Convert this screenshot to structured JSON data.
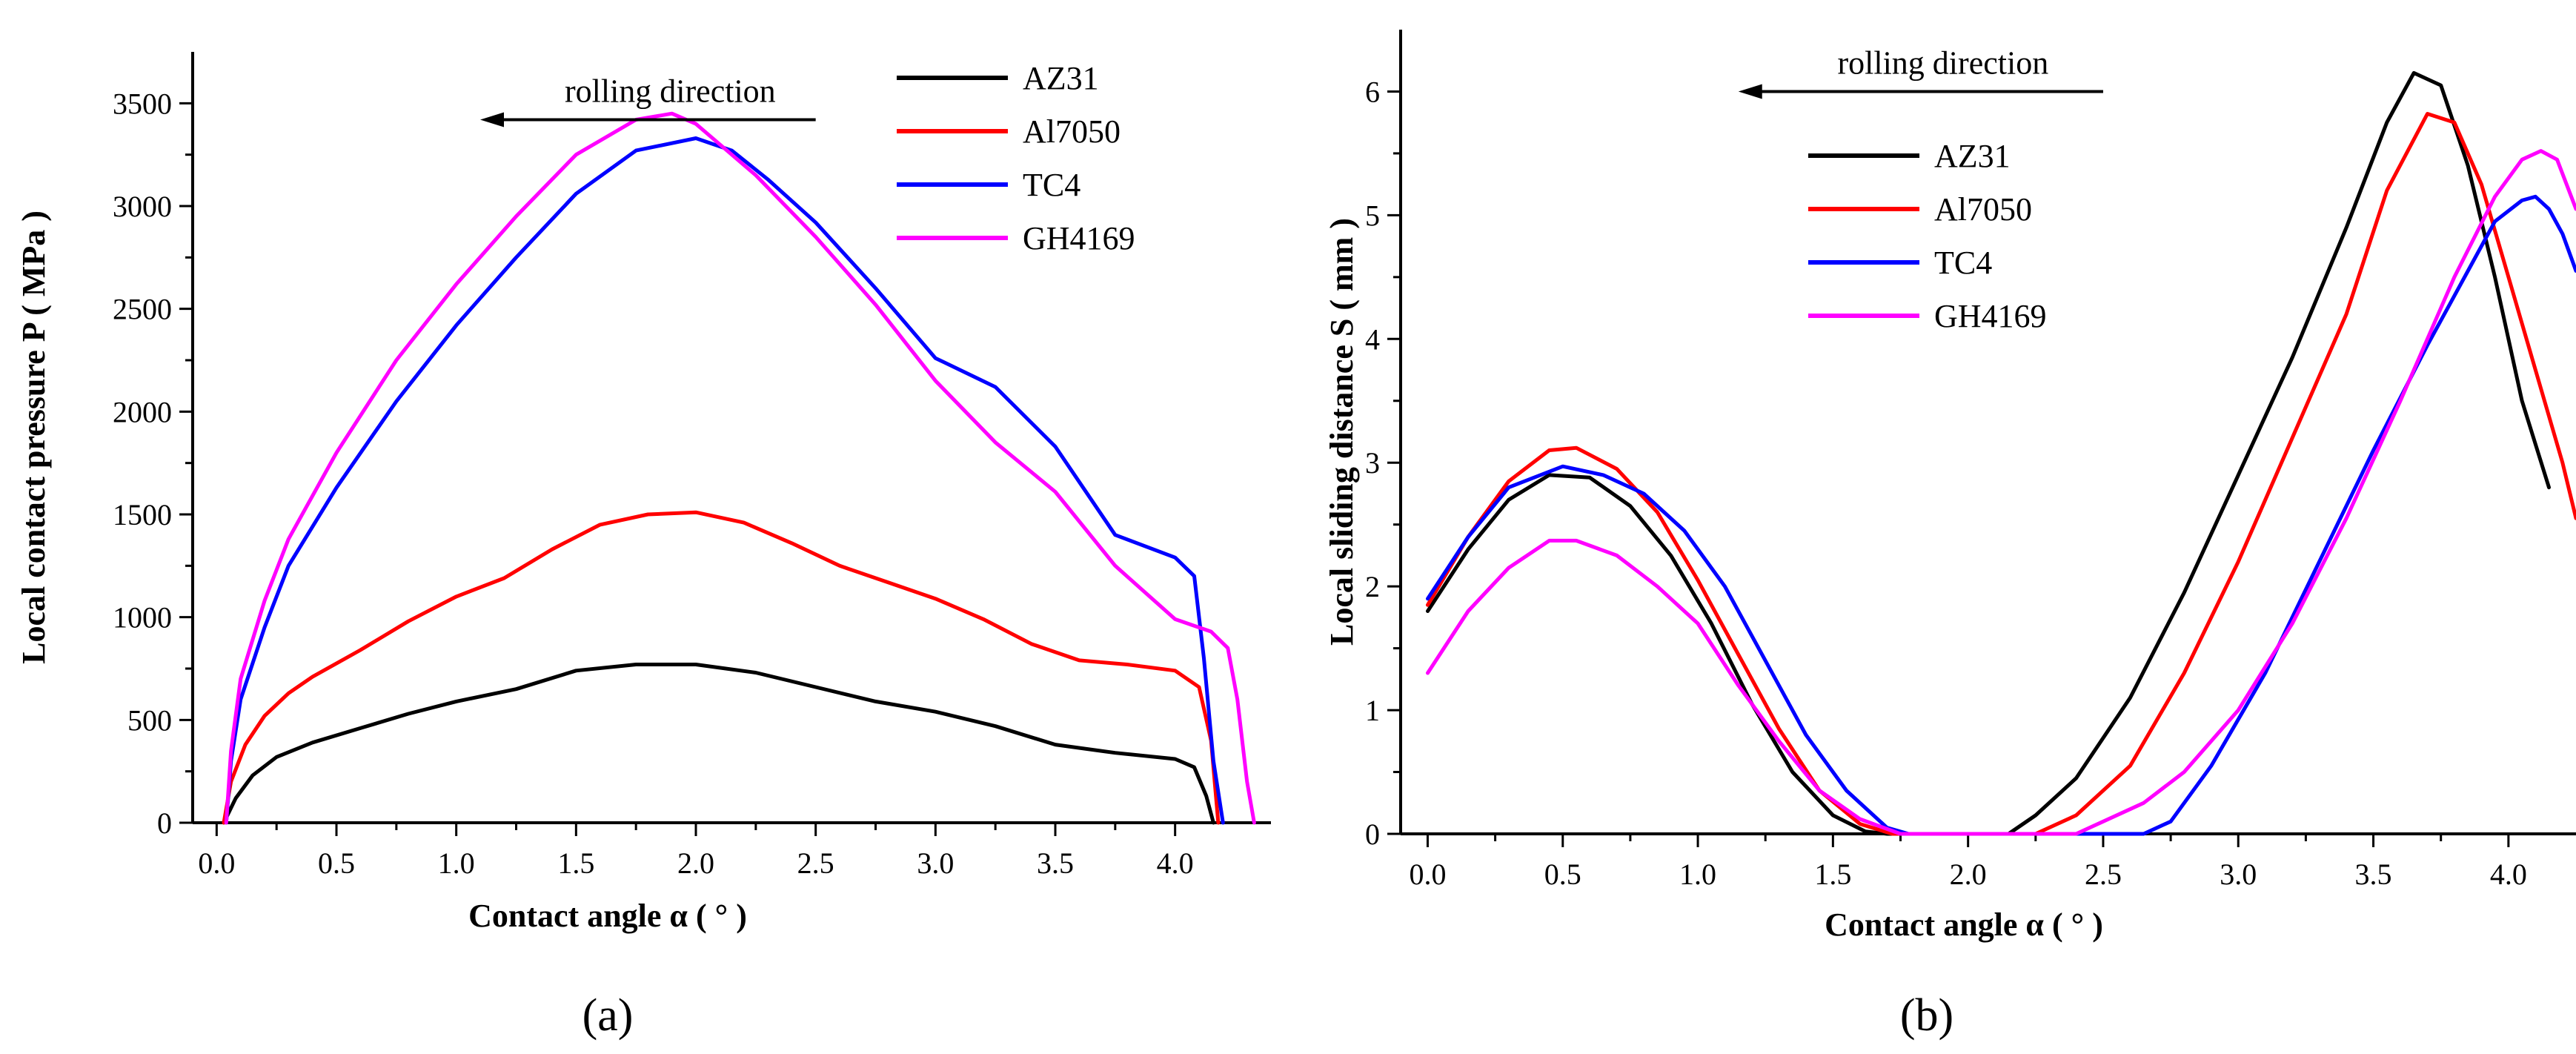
{
  "chart_data": [
    {
      "type": "line",
      "panel_label": "(a)",
      "xlabel": "Contact angle α ( ° )",
      "ylabel": "Local contact pressure P ( MPa )",
      "xlim": [
        -0.1,
        4.4
      ],
      "ylim": [
        0,
        3750
      ],
      "xticks": [
        0.0,
        0.5,
        1.0,
        1.5,
        2.0,
        2.5,
        3.0,
        3.5,
        4.0
      ],
      "xtick_labels": [
        "0.0",
        "0.5",
        "1.0",
        "1.5",
        "2.0",
        "2.5",
        "3.0",
        "3.5",
        "4.0"
      ],
      "yticks": [
        0,
        500,
        1000,
        1500,
        2000,
        2500,
        3000,
        3500
      ],
      "ytick_labels": [
        "0",
        "500",
        "1000",
        "1500",
        "2000",
        "2500",
        "3000",
        "3500"
      ],
      "legend_position": "top-right",
      "annotation": {
        "text": "rolling direction",
        "arrow_from": 2.5,
        "arrow_to": 1.1,
        "y": 3420
      },
      "series": [
        {
          "name": "AZ31",
          "color": "#000000",
          "x": [
            0.03,
            0.08,
            0.15,
            0.25,
            0.4,
            0.6,
            0.8,
            1.0,
            1.25,
            1.5,
            1.75,
            2.0,
            2.25,
            2.5,
            2.75,
            3.0,
            3.25,
            3.5,
            3.75,
            4.0,
            4.08,
            4.13,
            4.16
          ],
          "y": [
            0,
            120,
            230,
            320,
            390,
            460,
            530,
            590,
            650,
            740,
            770,
            770,
            730,
            660,
            590,
            540,
            470,
            380,
            340,
            310,
            270,
            130,
            0
          ]
        },
        {
          "name": "Al7050",
          "color": "#ff0000",
          "x": [
            0.03,
            0.06,
            0.12,
            0.2,
            0.3,
            0.4,
            0.6,
            0.8,
            1.0,
            1.2,
            1.4,
            1.6,
            1.8,
            2.0,
            2.2,
            2.4,
            2.6,
            2.8,
            3.0,
            3.2,
            3.4,
            3.6,
            3.8,
            4.0,
            4.1,
            4.15,
            4.18
          ],
          "y": [
            0,
            200,
            380,
            520,
            630,
            710,
            840,
            980,
            1100,
            1190,
            1330,
            1450,
            1500,
            1510,
            1460,
            1360,
            1250,
            1170,
            1090,
            990,
            870,
            790,
            770,
            740,
            660,
            400,
            0
          ]
        },
        {
          "name": "TC4",
          "color": "#0000ff",
          "x": [
            0.04,
            0.06,
            0.1,
            0.2,
            0.3,
            0.5,
            0.75,
            1.0,
            1.25,
            1.5,
            1.75,
            2.0,
            2.15,
            2.3,
            2.5,
            2.75,
            3.0,
            3.25,
            3.5,
            3.75,
            4.0,
            4.08,
            4.12,
            4.16,
            4.2
          ],
          "y": [
            0,
            300,
            600,
            950,
            1250,
            1630,
            2050,
            2420,
            2750,
            3060,
            3270,
            3330,
            3270,
            3130,
            2920,
            2600,
            2260,
            2120,
            1830,
            1400,
            1290,
            1200,
            800,
            300,
            0
          ]
        },
        {
          "name": "GH4169",
          "color": "#ff00ff",
          "x": [
            0.04,
            0.06,
            0.1,
            0.2,
            0.3,
            0.5,
            0.75,
            1.0,
            1.25,
            1.5,
            1.75,
            1.9,
            2.0,
            2.25,
            2.5,
            2.75,
            3.0,
            3.25,
            3.5,
            3.75,
            4.0,
            4.15,
            4.22,
            4.26,
            4.3,
            4.33
          ],
          "y": [
            0,
            350,
            700,
            1080,
            1380,
            1800,
            2250,
            2620,
            2950,
            3250,
            3420,
            3450,
            3400,
            3150,
            2850,
            2520,
            2150,
            1850,
            1610,
            1250,
            990,
            930,
            850,
            600,
            200,
            0
          ]
        }
      ]
    },
    {
      "type": "line",
      "panel_label": "(b)",
      "xlabel": "Contact angle α ( ° )",
      "ylabel": "Local sliding distance S ( mm )",
      "xlim": [
        -0.1,
        4.25
      ],
      "ylim": [
        0,
        6.5
      ],
      "xticks": [
        0.0,
        0.5,
        1.0,
        1.5,
        2.0,
        2.5,
        3.0,
        3.5,
        4.0
      ],
      "xtick_labels": [
        "0.0",
        "0.5",
        "1.0",
        "1.5",
        "2.0",
        "2.5",
        "3.0",
        "3.5",
        "4.0"
      ],
      "yticks": [
        0,
        1,
        2,
        3,
        4,
        5,
        6
      ],
      "ytick_labels": [
        "0",
        "1",
        "2",
        "3",
        "4",
        "5",
        "6"
      ],
      "legend_position": "upper-left",
      "annotation": {
        "text": "rolling direction",
        "arrow_from": 2.5,
        "arrow_to": 1.15,
        "y": 6.0
      },
      "series": [
        {
          "name": "AZ31",
          "color": "#000000",
          "x": [
            0.0,
            0.15,
            0.3,
            0.45,
            0.6,
            0.75,
            0.9,
            1.05,
            1.2,
            1.35,
            1.5,
            1.62,
            1.7,
            2.15,
            2.25,
            2.4,
            2.6,
            2.8,
            3.0,
            3.2,
            3.4,
            3.55,
            3.65,
            3.75,
            3.85,
            3.95,
            4.05,
            4.15
          ],
          "y": [
            1.8,
            2.3,
            2.7,
            2.9,
            2.88,
            2.65,
            2.25,
            1.7,
            1.05,
            0.5,
            0.15,
            0.02,
            0.0,
            0.0,
            0.15,
            0.45,
            1.1,
            1.95,
            2.9,
            3.85,
            4.9,
            5.75,
            6.15,
            6.05,
            5.4,
            4.5,
            3.5,
            2.8
          ]
        },
        {
          "name": "Al7050",
          "color": "#ff0000",
          "x": [
            0.0,
            0.15,
            0.3,
            0.45,
            0.55,
            0.7,
            0.85,
            1.0,
            1.15,
            1.3,
            1.45,
            1.6,
            1.72,
            2.25,
            2.4,
            2.6,
            2.8,
            3.0,
            3.2,
            3.4,
            3.55,
            3.7,
            3.8,
            3.9,
            4.0,
            4.1,
            4.2,
            4.25
          ],
          "y": [
            1.85,
            2.4,
            2.85,
            3.1,
            3.12,
            2.95,
            2.6,
            2.05,
            1.45,
            0.85,
            0.35,
            0.08,
            0.0,
            0.0,
            0.15,
            0.55,
            1.3,
            2.2,
            3.2,
            4.2,
            5.2,
            5.82,
            5.75,
            5.25,
            4.5,
            3.75,
            3.0,
            2.55
          ]
        },
        {
          "name": "TC4",
          "color": "#0000ff",
          "x": [
            0.0,
            0.15,
            0.3,
            0.5,
            0.65,
            0.8,
            0.95,
            1.1,
            1.25,
            1.4,
            1.55,
            1.7,
            1.78,
            2.65,
            2.75,
            2.9,
            3.1,
            3.3,
            3.5,
            3.7,
            3.85,
            3.95,
            4.05,
            4.1,
            4.15,
            4.2,
            4.25
          ],
          "y": [
            1.9,
            2.4,
            2.8,
            2.97,
            2.9,
            2.75,
            2.45,
            2.0,
            1.4,
            0.8,
            0.35,
            0.05,
            0.0,
            0.0,
            0.1,
            0.55,
            1.3,
            2.2,
            3.1,
            3.95,
            4.55,
            4.95,
            5.12,
            5.15,
            5.05,
            4.85,
            4.55
          ]
        },
        {
          "name": "GH4169",
          "color": "#ff00ff",
          "x": [
            0.0,
            0.15,
            0.3,
            0.45,
            0.55,
            0.7,
            0.85,
            1.0,
            1.15,
            1.3,
            1.45,
            1.6,
            1.75,
            2.4,
            2.5,
            2.65,
            2.8,
            3.0,
            3.2,
            3.4,
            3.6,
            3.8,
            3.95,
            4.05,
            4.12,
            4.18,
            4.25
          ],
          "y": [
            1.3,
            1.8,
            2.15,
            2.37,
            2.37,
            2.25,
            2.0,
            1.7,
            1.2,
            0.75,
            0.35,
            0.12,
            0.0,
            0.0,
            0.1,
            0.25,
            0.5,
            1.0,
            1.7,
            2.55,
            3.5,
            4.5,
            5.15,
            5.45,
            5.52,
            5.45,
            5.05
          ]
        }
      ]
    }
  ]
}
